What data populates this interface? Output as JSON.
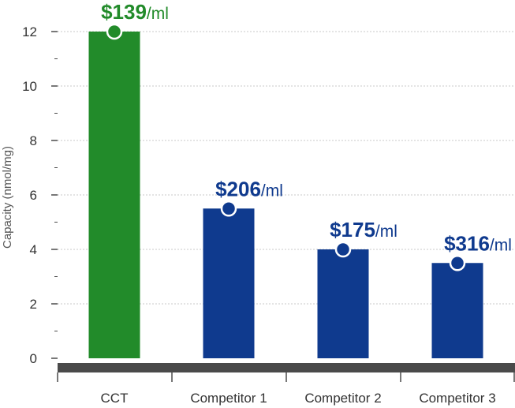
{
  "chart_data": {
    "type": "bar",
    "categories": [
      "CCT",
      "Competitor 1",
      "Competitor 2",
      "Competitor 3"
    ],
    "values": [
      12,
      5.5,
      4,
      3.5
    ],
    "price_labels": [
      {
        "price": "$139",
        "unit": "/ml"
      },
      {
        "price": "$206",
        "unit": "/ml"
      },
      {
        "price": "$175",
        "unit": "/ml"
      },
      {
        "price": "$316",
        "unit": "/ml"
      }
    ],
    "bar_colors": [
      "#228b2a",
      "#0f3a8e",
      "#0f3a8e",
      "#0f3a8e"
    ],
    "price_colors": [
      "#228b2a",
      "#0f3a8e",
      "#0f3a8e",
      "#0f3a8e"
    ],
    "ylabel": "Capacity (nmol/mg)",
    "xlabel": "",
    "ylim": [
      0,
      12
    ],
    "yticks": [
      0,
      2,
      4,
      6,
      8,
      10,
      12
    ],
    "grid": true,
    "axis_color": "#4a4a4a"
  }
}
